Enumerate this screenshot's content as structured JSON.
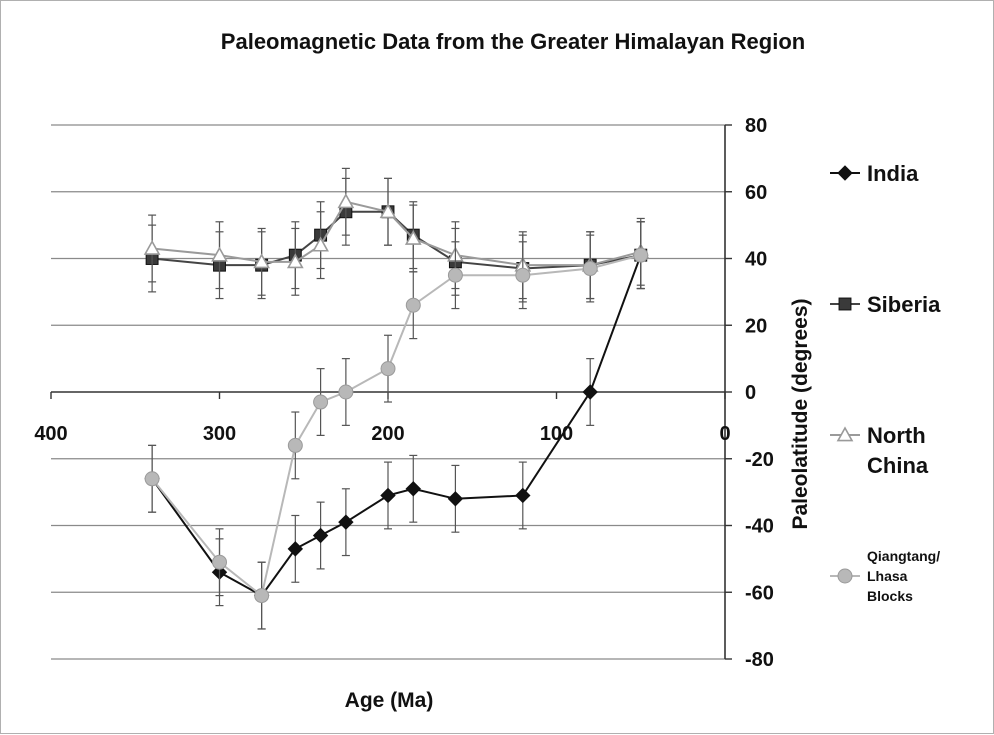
{
  "chart_data": {
    "type": "line",
    "title": "Paleomagnetic Data from the Greater Himalayan Region",
    "xlabel": "Age (Ma)",
    "ylabel": "Paleolatitude (degrees)",
    "xlim": [
      400,
      0
    ],
    "ylim": [
      -80,
      80
    ],
    "x_ticks": [
      "400",
      "300",
      "200",
      "100",
      "0"
    ],
    "y_ticks": [
      "80",
      "60",
      "40",
      "20",
      "0",
      "-20",
      "-40",
      "-60",
      "-80"
    ],
    "x_tick_values": [
      400,
      300,
      200,
      100,
      0
    ],
    "y_tick_values": [
      80,
      60,
      40,
      20,
      0,
      -20,
      -40,
      -60,
      -80
    ],
    "grid": "horizontal",
    "legend_position": "right",
    "error_bar": 10,
    "series": [
      {
        "name": "India",
        "marker": "diamond",
        "color": "#111111",
        "x": [
          340,
          300,
          275,
          255,
          240,
          225,
          200,
          185,
          160,
          120,
          80,
          50
        ],
        "y": [
          -26,
          -54,
          -61,
          -47,
          -43,
          -39,
          -31,
          -29,
          -32,
          -31,
          0,
          41
        ]
      },
      {
        "name": "Siberia",
        "marker": "square",
        "color": "#3a3a3a",
        "x": [
          340,
          300,
          275,
          255,
          240,
          225,
          200,
          185,
          160,
          120,
          80,
          50
        ],
        "y": [
          40,
          38,
          38,
          41,
          47,
          54,
          54,
          47,
          39,
          37,
          38,
          41
        ]
      },
      {
        "name": "North China",
        "name_lines": [
          "North",
          "China"
        ],
        "marker": "triangle",
        "color": "#9a9a9a",
        "x": [
          340,
          300,
          275,
          255,
          240,
          225,
          200,
          185,
          160,
          120,
          80,
          50
        ],
        "y": [
          43,
          41,
          39,
          39,
          44,
          57,
          54,
          46,
          41,
          38,
          38,
          42
        ]
      },
      {
        "name": "Qiangtang/ Lhasa Blocks",
        "name_lines": [
          "Qiangtang/",
          "Lhasa",
          "Blocks"
        ],
        "marker": "circle",
        "color": "#b8b8b8",
        "x": [
          340,
          300,
          275,
          255,
          240,
          225,
          200,
          185,
          160,
          120,
          80,
          50
        ],
        "y": [
          -26,
          -51,
          -61,
          -16,
          -3,
          0,
          7,
          26,
          35,
          35,
          37,
          41
        ]
      }
    ]
  }
}
